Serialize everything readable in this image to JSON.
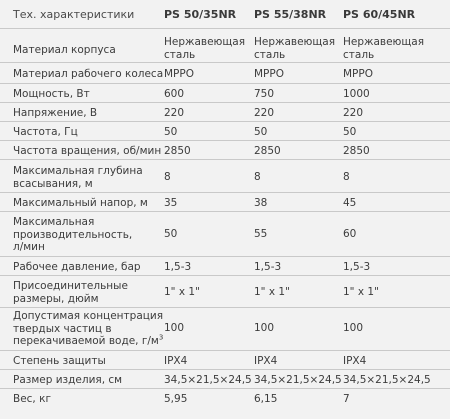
{
  "header": {
    "label": "Тех. характеристики",
    "models": [
      "PS 50/35NR",
      "PS 55/38NR",
      "PS 60/45NR"
    ]
  },
  "rows": [
    {
      "label": "Материал корпуса",
      "values": [
        "Нержавеющая сталь",
        "Нержавеющая сталь",
        "Нержавеющая сталь"
      ]
    },
    {
      "label": "Материал рабочего колеса",
      "values": [
        "MPPO",
        "MPPO",
        "MPPO"
      ]
    },
    {
      "label": "Мощность, Вт",
      "values": [
        "600",
        "750",
        "1000"
      ]
    },
    {
      "label": "Напряжение, В",
      "values": [
        "220",
        "220",
        "220"
      ]
    },
    {
      "label": "Частота, Гц",
      "values": [
        "50",
        "50",
        "50"
      ]
    },
    {
      "label": "Частота вращения, об/мин",
      "values": [
        "2850",
        "2850",
        "2850"
      ]
    },
    {
      "label": "Максимальная глубина всасывания, м",
      "values": [
        "8",
        "8",
        "8"
      ]
    },
    {
      "label": "Максимальный напор, м",
      "values": [
        "35",
        "38",
        "45"
      ]
    },
    {
      "label": "Максимальная производительность, л/мин",
      "values": [
        "50",
        "55",
        "60"
      ]
    },
    {
      "label": "Рабочее давление, бар",
      "values": [
        "1,5-3",
        "1,5-3",
        "1,5-3"
      ]
    },
    {
      "label": "Присоединительные размеры, дюйм",
      "values": [
        "1\" x 1\"",
        "1\" x 1\"",
        "1\" x 1\""
      ]
    },
    {
      "label": "Допустимая концентрация твердых частиц в перекачиваемой воде, г/м",
      "label_sup": "3",
      "values": [
        "100",
        "100",
        "100"
      ]
    },
    {
      "label": "Степень защиты",
      "values": [
        "IPX4",
        "IPX4",
        "IPX4"
      ]
    },
    {
      "label": "Размер изделия, см",
      "values": [
        "34,5×21,5×24,5",
        "34,5×21,5×24,5",
        "34,5×21,5×24,5"
      ]
    },
    {
      "label": "Вес, кг",
      "values": [
        "5,95",
        "6,15",
        "7"
      ]
    }
  ]
}
